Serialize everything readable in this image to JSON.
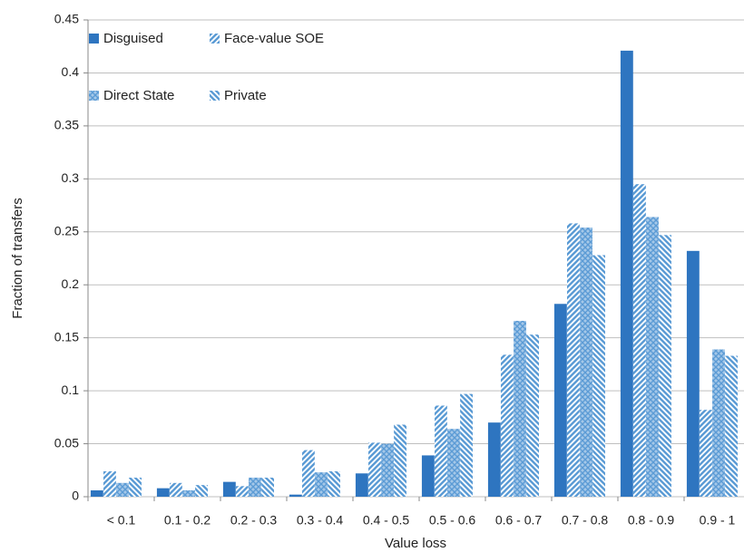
{
  "chart_data": {
    "type": "bar",
    "xlabel": "Value loss",
    "ylabel": "Fraction of transfers",
    "categories": [
      "< 0.1",
      "0.1 - 0.2",
      "0.2 - 0.3",
      "0.3 - 0.4",
      "0.4 - 0.5",
      "0.5 - 0.6",
      "0.6 - 0.7",
      "0.7 - 0.8",
      "0.8 - 0.9",
      "0.9 - 1"
    ],
    "series": [
      {
        "name": "Disguised",
        "color": "#2e75c0",
        "pattern": "solid",
        "values": [
          0.006,
          0.008,
          0.014,
          0.002,
          0.022,
          0.039,
          0.07,
          0.182,
          0.421,
          0.232
        ]
      },
      {
        "name": "Face-value SOE",
        "color": "#5b9bd5",
        "pattern": "diagonal",
        "values": [
          0.024,
          0.013,
          0.01,
          0.044,
          0.051,
          0.086,
          0.134,
          0.258,
          0.295,
          0.082
        ]
      },
      {
        "name": "Direct State",
        "color": "#5b9bd5",
        "pattern": "crosshatch",
        "values": [
          0.013,
          0.006,
          0.018,
          0.023,
          0.05,
          0.064,
          0.166,
          0.254,
          0.264,
          0.139
        ]
      },
      {
        "name": "Private",
        "color": "#5b9bd5",
        "pattern": "backdiagonal",
        "values": [
          0.018,
          0.011,
          0.018,
          0.024,
          0.068,
          0.097,
          0.153,
          0.228,
          0.247,
          0.133
        ]
      }
    ],
    "ylim": [
      0,
      0.45
    ],
    "yticks": [
      0,
      0.05,
      0.1,
      0.15,
      0.2,
      0.25,
      0.3,
      0.35,
      0.4,
      0.45
    ],
    "grid": true,
    "legend": "upper left"
  }
}
